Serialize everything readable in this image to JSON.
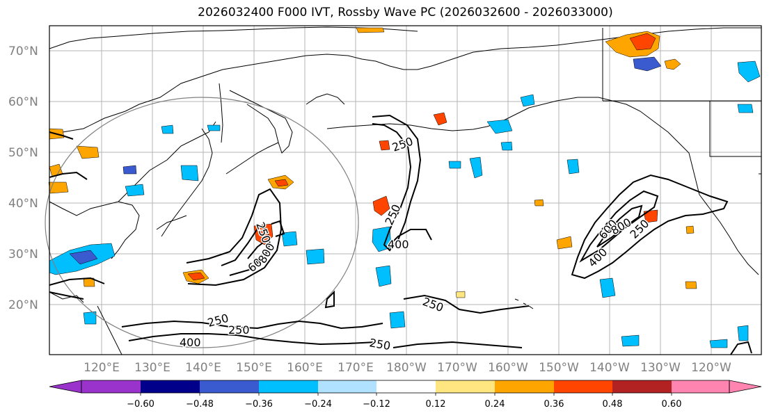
{
  "title": "2026032400 F000 IVT, Rossby Wave PC (2026032600 - 2026033000)",
  "map": {
    "lat_ticks": [
      "70°N",
      "60°N",
      "50°N",
      "40°N",
      "30°N",
      "20°N"
    ],
    "lon_ticks": [
      "120°E",
      "130°E",
      "140°E",
      "150°E",
      "160°E",
      "170°E",
      "180°W",
      "170°W",
      "160°W",
      "150°W",
      "140°W",
      "130°W",
      "120°W"
    ],
    "contour_labels": [
      "250",
      "400",
      "600",
      "800"
    ],
    "colors": {
      "land_line": "#000000",
      "grid": "#b0b0b0",
      "circle": "#808080"
    }
  },
  "colorbar": {
    "ticks": [
      "−0.60",
      "−0.48",
      "−0.36",
      "−0.24",
      "−0.12",
      "0.12",
      "0.24",
      "0.36",
      "0.48",
      "0.60"
    ],
    "colors": [
      "#9933cc",
      "#00008b",
      "#3a5bd0",
      "#00bfff",
      "#b0e2ff",
      "#ffffff",
      "#ffe680",
      "#ffa500",
      "#ff4500",
      "#b22222",
      "#ff85b0"
    ]
  }
}
